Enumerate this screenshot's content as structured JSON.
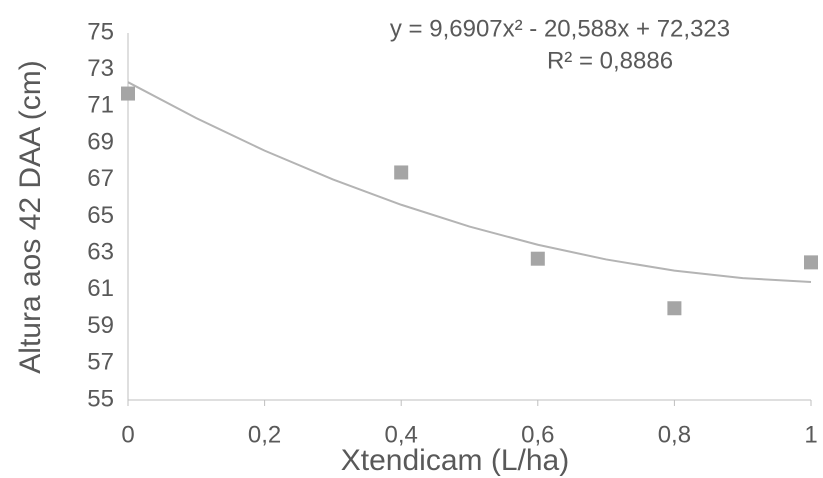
{
  "chart_data": {
    "type": "scatter",
    "equation": "y = 9,6907x² - 20,588x + 72,323",
    "r_squared": "R² = 0,8886",
    "x_label": "Xtendicam (L/ha)",
    "y_label": "Altura aos 42 DAA (cm)",
    "series": [
      {
        "color": "#a5a5a5",
        "x": [
          0,
          0.4,
          0.6,
          0.8,
          1
        ],
        "values": [
          71.7,
          67.4,
          62.7,
          60.0,
          62.5
        ]
      }
    ],
    "trendline": {
      "color": "#b4b4b4",
      "x": [
        0,
        0.1,
        0.2,
        0.3,
        0.4,
        0.5,
        0.6,
        0.7,
        0.8,
        0.9,
        1
      ],
      "values": [
        72.32,
        70.36,
        68.59,
        67.02,
        65.64,
        64.45,
        63.46,
        62.66,
        62.05,
        61.64,
        61.43
      ]
    },
    "xlim": [
      0,
      1
    ],
    "xticks": [
      0,
      {
        "value": 0.2,
        "label": "0,2"
      },
      {
        "value": 0.4,
        "label": "0,4"
      },
      {
        "value": 0.6,
        "label": "0,6"
      },
      {
        "value": 0.8,
        "label": "0,8"
      },
      1
    ],
    "ylim": [
      55,
      75
    ],
    "yticks": [
      55,
      57,
      59,
      61,
      63,
      65,
      67,
      69,
      71,
      73,
      75
    ]
  }
}
